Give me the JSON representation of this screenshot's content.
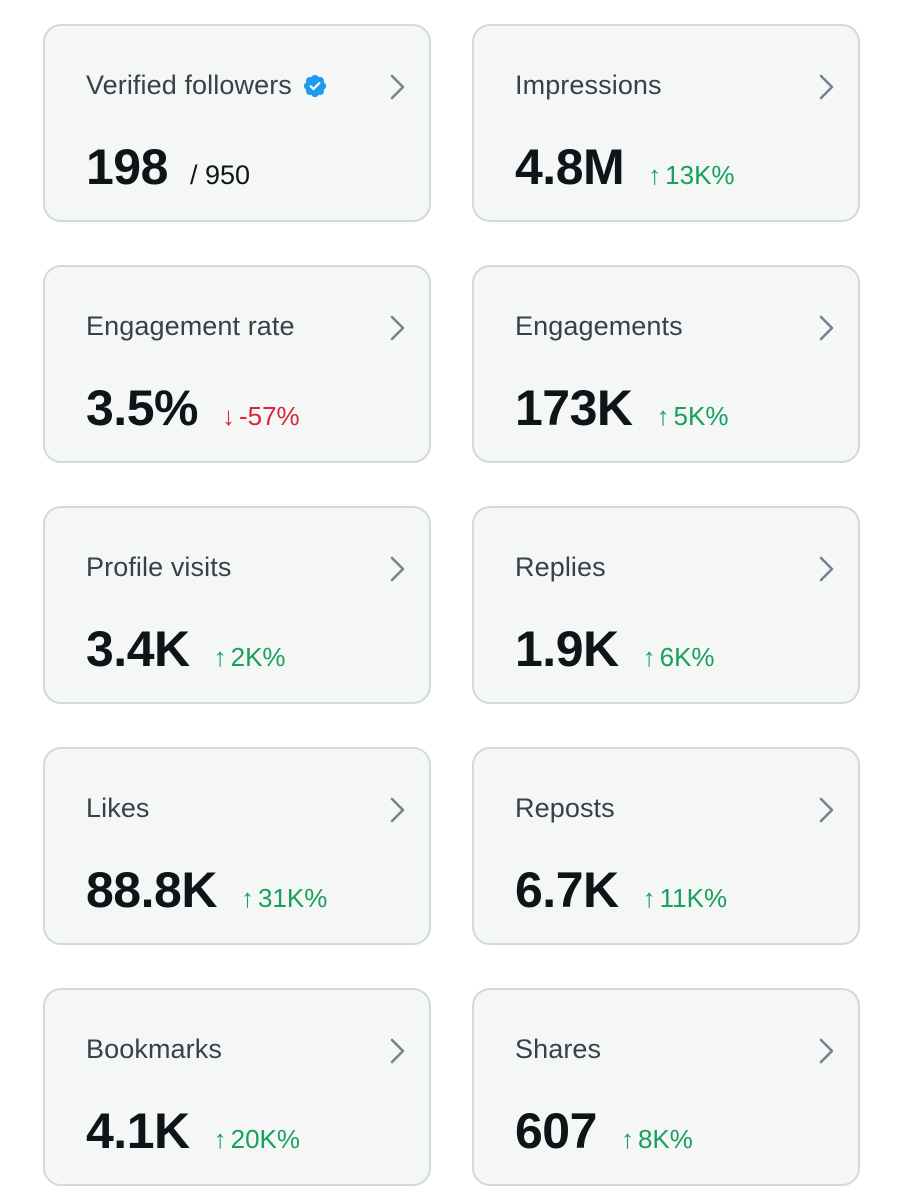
{
  "colors": {
    "card_background": "#f5f7f7",
    "card_border": "#cfd9de",
    "positive": "#17a05e",
    "negative": "#d9263d",
    "verified_badge": "#1d9bf0",
    "chevron": "#75838f"
  },
  "cards": [
    {
      "title": "Verified followers",
      "value": "198",
      "sub": "/ 950",
      "verified": true,
      "icon": "chevron-right-icon"
    },
    {
      "title": "Impressions",
      "value": "4.8M",
      "delta": "13K%",
      "direction": "up",
      "arrow": "↑",
      "icon": "chevron-right-icon"
    },
    {
      "title": "Engagement rate",
      "value": "3.5%",
      "delta": "-57%",
      "direction": "down",
      "arrow": "↓",
      "icon": "chevron-right-icon"
    },
    {
      "title": "Engagements",
      "value": "173K",
      "delta": "5K%",
      "direction": "up",
      "arrow": "↑",
      "icon": "chevron-right-icon"
    },
    {
      "title": "Profile visits",
      "value": "3.4K",
      "delta": "2K%",
      "direction": "up",
      "arrow": "↑",
      "icon": "chevron-right-icon"
    },
    {
      "title": "Replies",
      "value": "1.9K",
      "delta": "6K%",
      "direction": "up",
      "arrow": "↑",
      "icon": "chevron-right-icon"
    },
    {
      "title": "Likes",
      "value": "88.8K",
      "delta": "31K%",
      "direction": "up",
      "arrow": "↑",
      "icon": "chevron-right-icon"
    },
    {
      "title": "Reposts",
      "value": "6.7K",
      "delta": "11K%",
      "direction": "up",
      "arrow": "↑",
      "icon": "chevron-right-icon"
    },
    {
      "title": "Bookmarks",
      "value": "4.1K",
      "delta": "20K%",
      "direction": "up",
      "arrow": "↑",
      "icon": "chevron-right-icon"
    },
    {
      "title": "Shares",
      "value": "607",
      "delta": "8K%",
      "direction": "up",
      "arrow": "↑",
      "icon": "chevron-right-icon"
    }
  ]
}
